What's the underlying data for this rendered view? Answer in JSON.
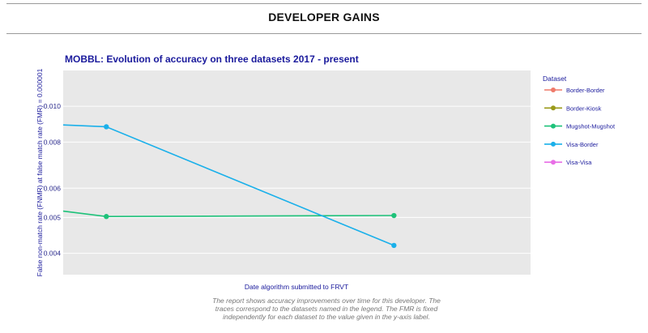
{
  "page": {
    "title": "DEVELOPER GAINS",
    "caption": "The report shows accuracy improvements over time for this developer. The traces correspond to the datasets named in the legend. The FMR is fixed independently for each dataset to the value given in the y-axis label."
  },
  "chart_data": {
    "type": "line",
    "title": "MOBBL: Evolution of accuracy on three datasets 2017 - present",
    "xlabel": "Date algorithm submitted to FRVT",
    "ylabel": "False non-match rate (FNMR) at false match rate (FMR) = 0.000001",
    "y_scale": "log",
    "ylim": [
      0.0035,
      0.0125
    ],
    "y_ticks": [
      0.004,
      0.005,
      0.006,
      0.008,
      0.01
    ],
    "y_tick_labels": [
      "0.004",
      "0.005",
      "0.006",
      "0.008",
      "0.010"
    ],
    "x_index_range": [
      -0.3,
      2.95
    ],
    "x_tick_labels": [],
    "grid": true,
    "legend_title": "Dataset",
    "legend_position": "right",
    "series": [
      {
        "name": "Border-Border",
        "color": "#ef7a6a",
        "x": [],
        "y": []
      },
      {
        "name": "Border-Kiosk",
        "color": "#9a9a1a",
        "x": [],
        "y": []
      },
      {
        "name": "Mugshot-Mugshot",
        "color": "#1ec27a",
        "x": [
          -0.3,
          0.0,
          2.0
        ],
        "y": [
          0.0052,
          0.00503,
          0.00506
        ]
      },
      {
        "name": "Visa-Border",
        "color": "#1ab0ea",
        "x": [
          -0.3,
          0.0,
          2.0
        ],
        "y": [
          0.0089,
          0.0088,
          0.0042
        ]
      },
      {
        "name": "Visa-Visa",
        "color": "#e86ee6",
        "x": [],
        "y": []
      }
    ],
    "markers_at_x": [
      0,
      2
    ]
  }
}
